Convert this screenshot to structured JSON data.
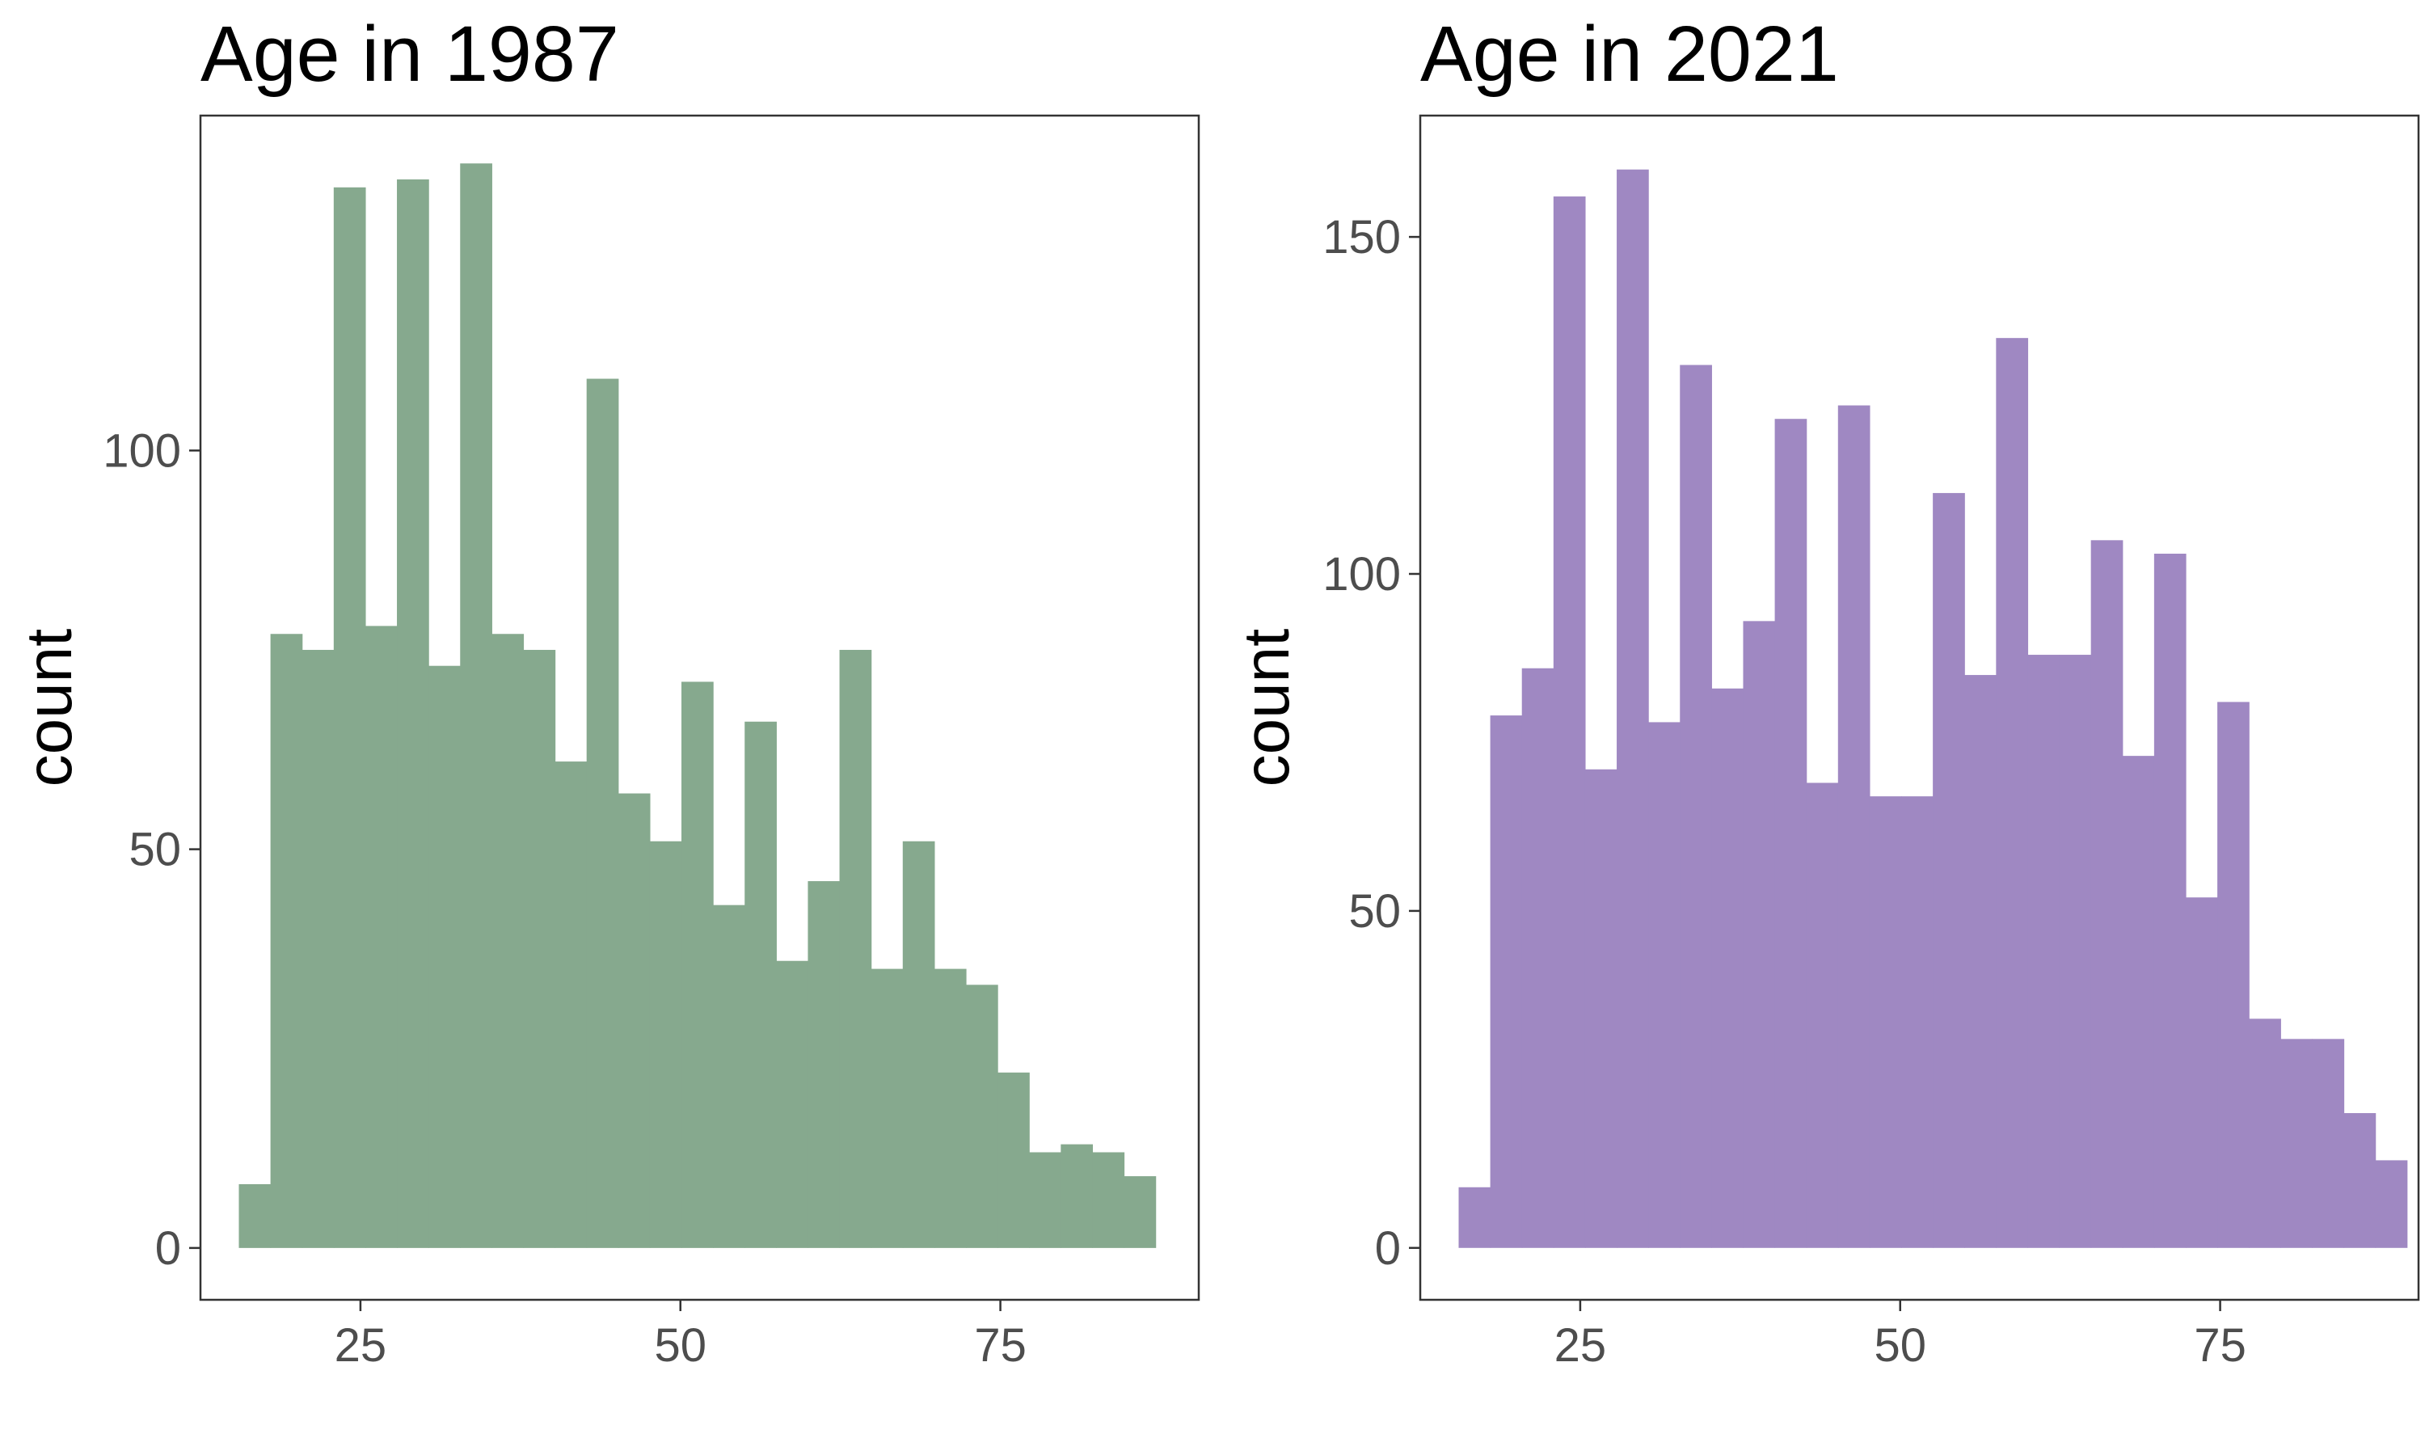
{
  "chart_data": [
    {
      "type": "bar",
      "title": "Age in 1987",
      "xlabel": "",
      "ylabel": "count",
      "color": "#86a98e",
      "bin_width": 2.47,
      "bin_start": 15.5,
      "xlim": [
        12.5,
        90.5
      ],
      "ylim": [
        -6.5,
        142
      ],
      "x_ticks": [
        25,
        50,
        75
      ],
      "y_ticks": [
        0,
        50,
        100
      ],
      "grid": false,
      "values": [
        8,
        77,
        75,
        133,
        78,
        134,
        73,
        136,
        77,
        75,
        61,
        109,
        57,
        51,
        71,
        43,
        66,
        36,
        46,
        75,
        35,
        51,
        35,
        33,
        22,
        12,
        13,
        12,
        9
      ]
    },
    {
      "type": "bar",
      "title": "Age in 2021",
      "xlabel": "",
      "ylabel": "count",
      "color": "#9f88c2",
      "bin_width": 2.47,
      "bin_start": 15.5,
      "xlim": [
        12.5,
        90.5
      ],
      "ylim": [
        -7.7,
        168
      ],
      "x_ticks": [
        25,
        50,
        75
      ],
      "y_ticks": [
        0,
        50,
        100,
        150
      ],
      "grid": false,
      "values": [
        9,
        79,
        86,
        156,
        71,
        160,
        78,
        131,
        83,
        93,
        123,
        69,
        125,
        67,
        67,
        112,
        85,
        135,
        88,
        88,
        105,
        73,
        103,
        52,
        81,
        34,
        31,
        31,
        20,
        13
      ]
    }
  ]
}
